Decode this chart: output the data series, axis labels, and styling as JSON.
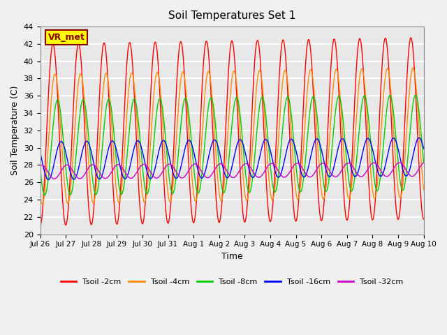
{
  "title": "Soil Temperatures Set 1",
  "xlabel": "Time",
  "ylabel": "Soil Temperature (C)",
  "ylim": [
    20,
    44
  ],
  "annotation_text": "VR_met",
  "annotation_bg": "#ffff00",
  "annotation_border": "#8b0000",
  "annotation_text_color": "#8b0000",
  "background_color": "#e8e8e8",
  "grid_color": "#ffffff",
  "tick_labels": [
    "Jul 26",
    "Jul 27",
    "Jul 28",
    "Jul 29",
    "Jul 30",
    "Jul 31",
    "Aug 1",
    "Aug 2",
    "Aug 3",
    "Aug 4",
    "Aug 5",
    "Aug 6",
    "Aug 7",
    "Aug 8",
    "Aug 9",
    "Aug 10"
  ],
  "series": [
    {
      "label": "Tsoil -2cm",
      "color": "#ff0000",
      "amplitude": 10.5,
      "mean": 31.5,
      "phase_shift": 0.0,
      "period": 1.0,
      "trend": 0.05
    },
    {
      "label": "Tsoil -4cm",
      "color": "#ff8c00",
      "amplitude": 7.5,
      "mean": 31.0,
      "phase_shift": 0.08,
      "period": 1.0,
      "trend": 0.05
    },
    {
      "label": "Tsoil -8cm",
      "color": "#00cc00",
      "amplitude": 5.5,
      "mean": 30.0,
      "phase_shift": 0.18,
      "period": 1.0,
      "trend": 0.04
    },
    {
      "label": "Tsoil -16cm",
      "color": "#0000ff",
      "amplitude": 2.2,
      "mean": 28.5,
      "phase_shift": 0.32,
      "period": 1.0,
      "trend": 0.03
    },
    {
      "label": "Tsoil -32cm",
      "color": "#cc00cc",
      "amplitude": 0.8,
      "mean": 27.2,
      "phase_shift": 0.55,
      "period": 1.0,
      "trend": 0.02
    }
  ]
}
